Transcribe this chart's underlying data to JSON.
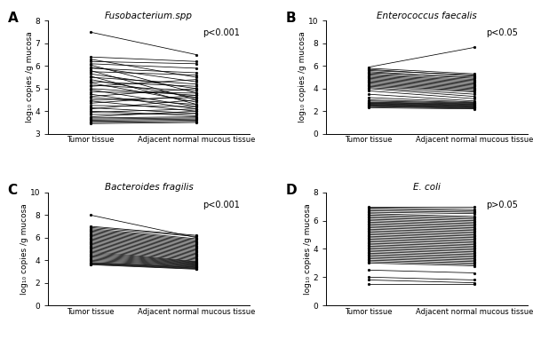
{
  "panels": [
    {
      "label": "A",
      "title": "Fusobacterium.spp",
      "pvalue": "p<0.001",
      "ylim": [
        3,
        8
      ],
      "yticks": [
        3,
        4,
        5,
        6,
        7,
        8
      ],
      "tumor_values": [
        7.5,
        6.4,
        6.3,
        6.2,
        6.1,
        6.05,
        5.95,
        5.9,
        5.8,
        5.75,
        5.65,
        5.55,
        5.5,
        5.4,
        5.3,
        5.25,
        5.15,
        5.1,
        5.0,
        4.95,
        4.85,
        4.75,
        4.65,
        4.6,
        4.5,
        4.45,
        4.35,
        4.25,
        4.15,
        4.1,
        4.0,
        3.95,
        3.85,
        3.75,
        3.7,
        3.65,
        3.6,
        3.55,
        3.5,
        3.45
      ],
      "normal_values": [
        6.5,
        6.2,
        5.5,
        6.1,
        5.9,
        4.8,
        5.3,
        5.7,
        4.5,
        5.6,
        5.0,
        4.3,
        5.2,
        4.6,
        5.1,
        4.4,
        4.9,
        5.4,
        4.7,
        4.2,
        4.8,
        4.1,
        5.0,
        4.3,
        4.6,
        4.0,
        4.7,
        4.2,
        3.9,
        4.5,
        3.8,
        4.1,
        3.9,
        4.0,
        3.75,
        3.7,
        3.65,
        3.6,
        3.55,
        3.5
      ]
    },
    {
      "label": "B",
      "title": "Enterococcus faecalis",
      "pvalue": "p<0.05",
      "ylim": [
        0,
        10
      ],
      "yticks": [
        0,
        2,
        4,
        6,
        8,
        10
      ],
      "tumor_values": [
        5.9,
        5.8,
        5.7,
        5.6,
        5.5,
        5.4,
        5.3,
        5.2,
        5.1,
        5.0,
        4.9,
        4.8,
        4.7,
        4.6,
        4.5,
        4.4,
        4.3,
        4.2,
        4.1,
        4.0,
        3.8,
        3.5,
        3.2,
        3.0,
        2.9,
        2.8,
        2.75,
        2.7,
        2.65,
        2.6,
        2.55,
        2.5,
        2.45,
        2.4,
        2.3
      ],
      "normal_values": [
        7.65,
        5.3,
        5.1,
        5.2,
        4.9,
        5.0,
        4.8,
        4.7,
        4.6,
        4.5,
        4.4,
        4.3,
        4.2,
        4.1,
        4.0,
        3.9,
        3.8,
        3.7,
        3.5,
        3.3,
        3.1,
        2.9,
        2.8,
        2.75,
        2.7,
        2.65,
        2.6,
        2.55,
        2.5,
        2.45,
        2.4,
        2.35,
        2.3,
        2.25,
        2.2
      ]
    },
    {
      "label": "C",
      "title": "Bacteroides fragilis",
      "pvalue": "p<0.001",
      "ylim": [
        0,
        10
      ],
      "yticks": [
        0,
        2,
        4,
        6,
        8,
        10
      ],
      "tumor_values": [
        8.0,
        7.0,
        6.9,
        6.8,
        6.7,
        6.6,
        6.5,
        6.4,
        6.3,
        6.2,
        6.1,
        6.0,
        5.9,
        5.8,
        5.7,
        5.6,
        5.5,
        5.4,
        5.3,
        5.2,
        5.1,
        5.0,
        4.9,
        4.8,
        4.7,
        4.6,
        4.5,
        4.4,
        4.3,
        4.2,
        4.1,
        4.0,
        3.9,
        3.8,
        3.75,
        3.7,
        3.65,
        3.6
      ],
      "normal_values": [
        6.0,
        6.2,
        6.1,
        5.9,
        5.8,
        5.7,
        5.6,
        5.5,
        5.4,
        5.3,
        5.2,
        5.1,
        5.0,
        4.9,
        4.8,
        4.7,
        4.6,
        4.5,
        4.4,
        4.3,
        4.2,
        4.1,
        4.0,
        3.9,
        3.85,
        3.8,
        3.75,
        3.7,
        3.65,
        3.6,
        3.55,
        3.5,
        3.45,
        3.4,
        3.35,
        3.3,
        3.25,
        3.2
      ]
    },
    {
      "label": "D",
      "title": "E. coli",
      "pvalue": "p>0.05",
      "ylim": [
        0,
        8
      ],
      "yticks": [
        0,
        2,
        4,
        6,
        8
      ],
      "tumor_values": [
        7.0,
        6.9,
        6.8,
        6.7,
        6.6,
        6.5,
        6.4,
        6.3,
        6.2,
        6.1,
        6.0,
        5.9,
        5.8,
        5.7,
        5.6,
        5.5,
        5.4,
        5.3,
        5.2,
        5.1,
        5.0,
        4.9,
        4.8,
        4.7,
        4.6,
        4.5,
        4.4,
        4.3,
        4.2,
        4.1,
        4.0,
        3.9,
        3.8,
        3.7,
        3.6,
        3.5,
        3.4,
        3.3,
        3.2,
        3.1,
        3.0,
        2.5,
        2.0,
        1.8,
        1.5
      ],
      "normal_values": [
        7.0,
        6.8,
        6.7,
        6.6,
        6.5,
        6.3,
        6.2,
        6.1,
        6.0,
        5.9,
        5.8,
        5.7,
        5.6,
        5.5,
        5.4,
        5.3,
        5.2,
        5.1,
        5.0,
        4.9,
        4.8,
        4.7,
        4.6,
        4.5,
        4.4,
        4.3,
        4.2,
        4.1,
        4.0,
        3.9,
        3.8,
        3.7,
        3.6,
        3.5,
        3.4,
        3.3,
        3.2,
        3.1,
        3.0,
        2.9,
        2.8,
        2.3,
        1.8,
        1.6,
        1.5
      ]
    }
  ],
  "xlabel_left": "Tumor tissue",
  "xlabel_right": "Adjacent normal mucous tissue",
  "ylabel": "log₁₀ copies /g mucosa",
  "line_color": "black",
  "line_width": 0.55,
  "marker_size": 2.0,
  "bg_color": "white"
}
